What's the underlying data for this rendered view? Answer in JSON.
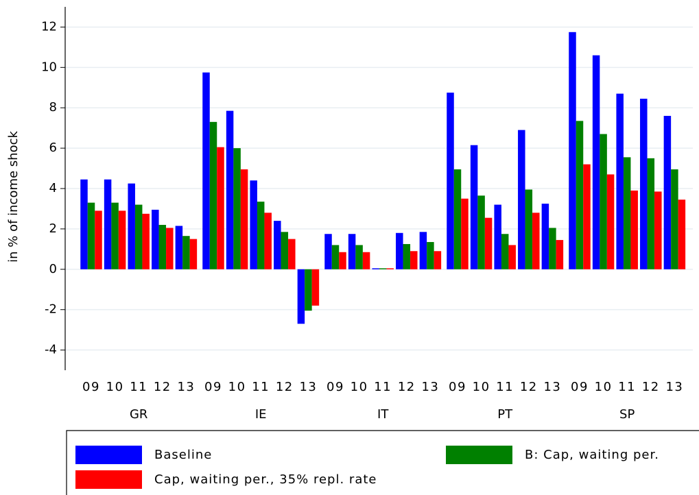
{
  "chart_data": {
    "type": "bar",
    "y_label": "in % of income shock",
    "categories": [
      "09",
      "10",
      "11",
      "12",
      "13",
      "09",
      "10",
      "11",
      "12",
      "13",
      "09",
      "10",
      "11",
      "12",
      "13",
      "09",
      "10",
      "11",
      "12",
      "13",
      "09",
      "10",
      "11",
      "12",
      "13"
    ],
    "groups": [
      "GR",
      "IE",
      "IT",
      "PT",
      "SP"
    ],
    "series": [
      {
        "name": "Baseline",
        "color": "#0000ff",
        "values": [
          4.45,
          4.45,
          4.25,
          2.95,
          2.15,
          9.75,
          7.85,
          4.4,
          2.4,
          -2.7,
          1.75,
          1.75,
          0.05,
          1.8,
          1.85,
          8.75,
          6.15,
          3.2,
          6.9,
          3.25,
          11.75,
          10.6,
          8.7,
          8.45,
          7.6
        ]
      },
      {
        "name": "B: Cap, waiting per.",
        "color": "#008000",
        "values": [
          3.3,
          3.3,
          3.2,
          2.2,
          1.65,
          7.3,
          6.0,
          3.35,
          1.85,
          -2.05,
          1.2,
          1.2,
          0.05,
          1.25,
          1.35,
          4.95,
          3.65,
          1.75,
          3.95,
          2.05,
          7.35,
          6.7,
          5.55,
          5.5,
          4.95
        ]
      },
      {
        "name": "Cap, waiting per., 35% repl. rate",
        "color": "#ff0000",
        "values": [
          2.9,
          2.9,
          2.75,
          2.05,
          1.5,
          6.05,
          4.95,
          2.8,
          1.5,
          -1.8,
          0.85,
          0.85,
          0.05,
          0.9,
          0.9,
          3.5,
          2.55,
          1.2,
          2.8,
          1.45,
          5.2,
          4.7,
          3.9,
          3.85,
          3.45
        ]
      }
    ],
    "ylim": [
      -5,
      13
    ],
    "yticks": [
      -4,
      -2,
      0,
      2,
      4,
      6,
      8,
      10,
      12
    ],
    "grid": true,
    "legend": "bottom"
  }
}
